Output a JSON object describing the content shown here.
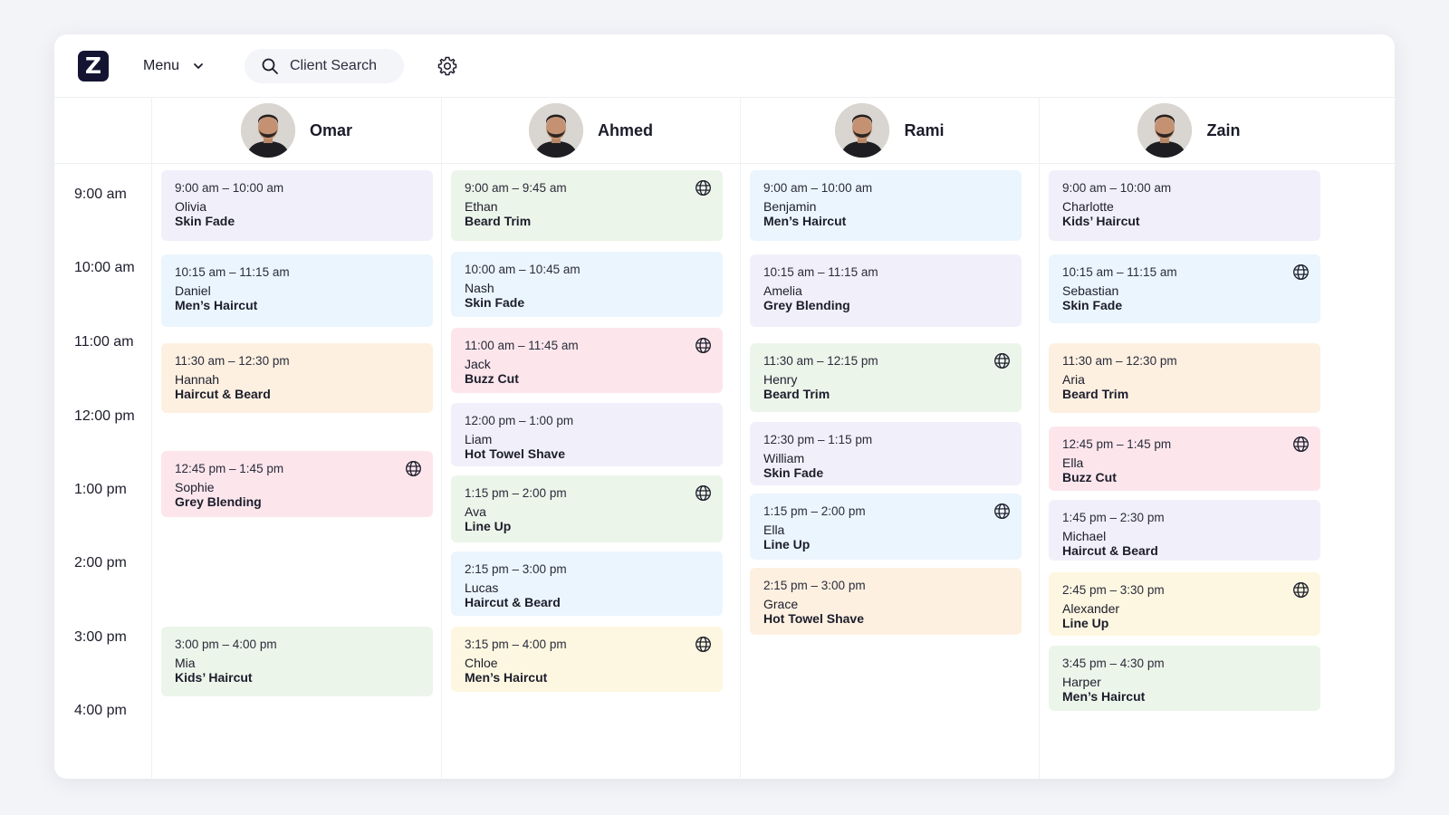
{
  "app": {
    "logo_letter": "Z"
  },
  "topbar": {
    "menu_label": "Menu",
    "search_placeholder": "Client Search"
  },
  "time_labels": [
    "9:00 am",
    "10:00 am",
    "11:00 am",
    "12:00 pm",
    "1:00 pm",
    "2:00 pm",
    "3:00 pm",
    "4:00 pm"
  ],
  "staff": [
    {
      "name": "Omar",
      "appointments": [
        {
          "time": "9:00 am – 10:00 am",
          "client": "Olivia",
          "service": "Skin Fade",
          "color": "purple",
          "online": false
        },
        {
          "time": "10:15 am – 11:15 am",
          "client": "Daniel",
          "service": "Men’s Haircut",
          "color": "blue",
          "online": false
        },
        {
          "time": "11:30 am – 12:30 pm",
          "client": "Hannah",
          "service": "Haircut & Beard",
          "color": "peach",
          "online": false
        },
        {
          "time": "12:45 pm – 1:45 pm",
          "client": "Sophie",
          "service": "Grey Blending",
          "color": "pink",
          "online": true
        },
        {
          "time": "3:00 pm – 4:00 pm",
          "client": "Mia",
          "service": "Kids’ Haircut",
          "color": "green",
          "online": false
        }
      ]
    },
    {
      "name": "Ahmed",
      "appointments": [
        {
          "time": "9:00 am – 9:45 am",
          "client": "Ethan",
          "service": "Beard Trim",
          "color": "green",
          "online": true
        },
        {
          "time": "10:00 am – 10:45 am",
          "client": "Nash",
          "service": "Skin Fade",
          "color": "blue",
          "online": false
        },
        {
          "time": "11:00 am – 11:45 am",
          "client": "Jack",
          "service": "Buzz Cut",
          "color": "pink",
          "online": true
        },
        {
          "time": "12:00 pm – 1:00 pm",
          "client": "Liam",
          "service": "Hot Towel Shave",
          "color": "purple",
          "online": false
        },
        {
          "time": "1:15 pm – 2:00 pm",
          "client": "Ava",
          "service": "Line Up",
          "color": "green",
          "online": true
        },
        {
          "time": "2:15 pm – 3:00 pm",
          "client": "Lucas",
          "service": "Haircut & Beard",
          "color": "blue",
          "online": false
        },
        {
          "time": "3:15 pm – 4:00 pm",
          "client": "Chloe",
          "service": "Men’s Haircut",
          "color": "yellow",
          "online": true
        }
      ]
    },
    {
      "name": "Rami",
      "appointments": [
        {
          "time": "9:00 am – 10:00 am",
          "client": "Benjamin",
          "service": "Men’s Haircut",
          "color": "blue",
          "online": false
        },
        {
          "time": "10:15 am – 11:15 am",
          "client": "Amelia",
          "service": "Grey Blending",
          "color": "purple",
          "online": false
        },
        {
          "time": "11:30 am – 12:15 pm",
          "client": "Henry",
          "service": "Beard Trim",
          "color": "green",
          "online": true
        },
        {
          "time": "12:30 pm – 1:15 pm",
          "client": "William",
          "service": "Skin Fade",
          "color": "purple",
          "online": false
        },
        {
          "time": "1:15 pm – 2:00 pm",
          "client": "Ella",
          "service": "Line Up",
          "color": "blue",
          "online": true
        },
        {
          "time": "2:15 pm – 3:00 pm",
          "client": "Grace",
          "service": "Hot Towel Shave",
          "color": "peach",
          "online": false
        }
      ]
    },
    {
      "name": "Zain",
      "appointments": [
        {
          "time": "9:00 am – 10:00 am",
          "client": "Charlotte",
          "service": "Kids’ Haircut",
          "color": "purple",
          "online": false
        },
        {
          "time": "10:15 am – 11:15 am",
          "client": "Sebastian",
          "service": "Skin Fade",
          "color": "blue",
          "online": true
        },
        {
          "time": "11:30 am – 12:30 pm",
          "client": "Aria",
          "service": "Beard Trim",
          "color": "peach",
          "online": false
        },
        {
          "time": "12:45 pm – 1:45 pm",
          "client": "Ella",
          "service": "Buzz Cut",
          "color": "pink",
          "online": true
        },
        {
          "time": "1:45 pm – 2:30 pm",
          "client": "Michael",
          "service": "Haircut & Beard",
          "color": "purple",
          "online": false
        },
        {
          "time": "2:45 pm – 3:30 pm",
          "client": "Alexander",
          "service": "Line Up",
          "color": "yellow",
          "online": true
        },
        {
          "time": "3:45 pm – 4:30 pm",
          "client": "Harper",
          "service": "Men’s Haircut",
          "color": "green",
          "online": false
        }
      ]
    }
  ]
}
